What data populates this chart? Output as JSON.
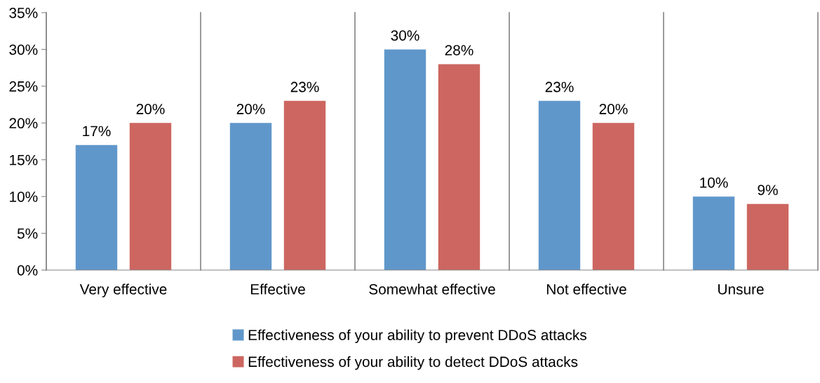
{
  "chart_data": {
    "type": "bar",
    "categories": [
      "Very effective",
      "Effective",
      "Somewhat effective",
      "Not effective",
      "Unsure"
    ],
    "series": [
      {
        "name": "Effectiveness of your ability to prevent DDoS attacks",
        "color": "#6097cb",
        "values": [
          17,
          20,
          30,
          23,
          10
        ],
        "value_labels": [
          "17%",
          "20%",
          "30%",
          "23%",
          "10%"
        ]
      },
      {
        "name": "Effectiveness of your ability to detect DDoS attacks",
        "color": "#cd6660",
        "values": [
          20,
          23,
          28,
          20,
          9
        ],
        "value_labels": [
          "20%",
          "23%",
          "28%",
          "20%",
          "9%"
        ]
      }
    ],
    "ylim": [
      0,
      35
    ],
    "yticks": [
      {
        "value": 0,
        "label": "0%"
      },
      {
        "value": 5,
        "label": "5%"
      },
      {
        "value": 10,
        "label": "10%"
      },
      {
        "value": 15,
        "label": "15%"
      },
      {
        "value": 20,
        "label": "20%"
      },
      {
        "value": 25,
        "label": "25%"
      },
      {
        "value": 30,
        "label": "30%"
      },
      {
        "value": 35,
        "label": "35%"
      }
    ],
    "grid": "x",
    "legend": "bottom"
  }
}
